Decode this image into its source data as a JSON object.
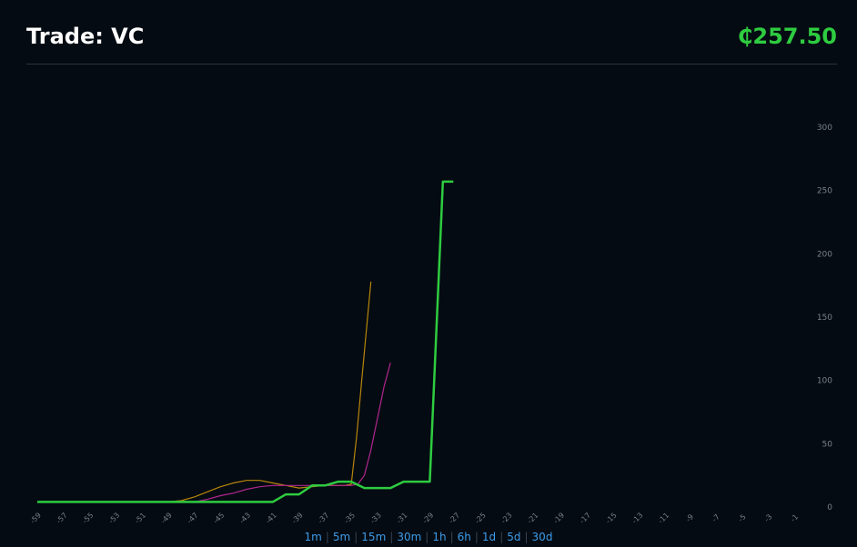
{
  "header": {
    "title": "Trade: VC",
    "price": "₵257.50"
  },
  "colors": {
    "background": "#050b12",
    "price": "#2ecc40",
    "main_line": "#2ecc40",
    "series_orange": "#b8860b",
    "series_magenta": "#b0268f",
    "tick": "#7a818a",
    "range_link": "#3d9be9"
  },
  "ranges": [
    "1m",
    "5m",
    "15m",
    "30m",
    "1h",
    "6h",
    "1d",
    "5d",
    "30d"
  ],
  "chart_data": {
    "type": "line",
    "xlim": [
      -60,
      0
    ],
    "ylim": [
      0,
      300
    ],
    "x_ticks": [
      -59,
      -57,
      -55,
      -53,
      -51,
      -49,
      -47,
      -45,
      -43,
      -41,
      -39,
      -37,
      -35,
      -33,
      -31,
      -29,
      -27,
      -25,
      -23,
      -21,
      -19,
      -17,
      -15,
      -13,
      -11,
      -9,
      -7,
      -5,
      -3,
      -1
    ],
    "y_ticks": [
      0,
      50,
      100,
      150,
      200,
      250,
      300
    ],
    "y_axis_position": "right",
    "grid": false,
    "series": [
      {
        "color": "#2ecc40",
        "step": true,
        "x": [
          -59,
          -41,
          -40,
          -39,
          -38,
          -37,
          -36,
          -35,
          -34,
          -33,
          -32,
          -31,
          -30,
          -29,
          -28,
          -27.2
        ],
        "values": [
          4,
          4,
          10,
          10,
          17,
          17,
          20,
          20,
          15,
          15,
          15,
          20,
          20,
          20,
          257,
          257
        ]
      },
      {
        "color": "#b8860b",
        "step": false,
        "x": [
          -59,
          -49,
          -48,
          -47,
          -46,
          -45,
          -44,
          -43,
          -42,
          -41,
          -40,
          -39,
          -38,
          -37,
          -36,
          -35.5,
          -35,
          -34.6,
          -34.2,
          -33.8,
          -33.5
        ],
        "values": [
          4,
          4,
          5,
          8,
          12,
          16,
          19,
          21,
          21,
          19,
          17,
          15,
          16,
          17,
          17,
          17,
          18,
          55,
          100,
          145,
          178
        ]
      },
      {
        "color": "#b0268f",
        "step": false,
        "x": [
          -59,
          -48,
          -47,
          -46,
          -45,
          -44,
          -43,
          -42,
          -41,
          -40,
          -39,
          -38,
          -37,
          -36,
          -35,
          -34.5,
          -34,
          -33.5,
          -33,
          -32.5,
          -32
        ],
        "values": [
          4,
          4,
          4,
          6,
          9,
          11,
          14,
          16,
          17,
          17,
          17,
          17,
          17,
          17,
          17,
          18,
          25,
          45,
          70,
          95,
          114
        ]
      }
    ]
  }
}
